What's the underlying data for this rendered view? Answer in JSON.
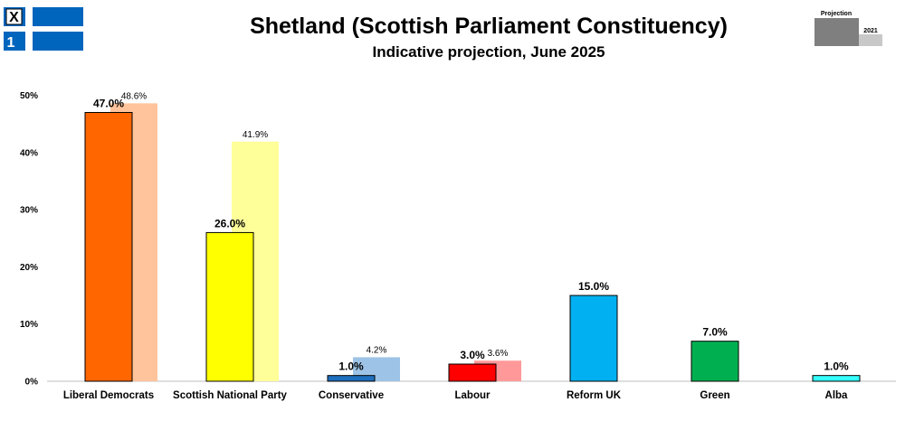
{
  "header": {
    "ballot_icon_mark": "X",
    "ballot_icon_number": "1"
  },
  "legend": {
    "projection_label": "Projection",
    "previous_label": "2021"
  },
  "colors": {
    "previous_default": "#cccccc",
    "legend_projection": "#7f7f7f",
    "legend_previous": "#c8c8c8",
    "flag_blue": "#0065bd"
  },
  "chart_data": {
    "type": "bar",
    "title": "Shetland (Scottish Parliament Constituency)",
    "subtitle": "Indicative projection, June 2025",
    "xlabel": "",
    "ylabel": "",
    "ylim": [
      0,
      50
    ],
    "yticks": [
      0,
      10,
      20,
      30,
      40,
      50
    ],
    "ytick_labels": [
      "0%",
      "10%",
      "20%",
      "30%",
      "40%",
      "50%"
    ],
    "categories": [
      "Liberal Democrats",
      "Scottish National Party",
      "Conservative",
      "Labour",
      "Reform UK",
      "Green",
      "Alba"
    ],
    "series": [
      {
        "name": "Projection",
        "values": [
          47.0,
          26.0,
          1.0,
          3.0,
          15.0,
          7.0,
          1.0
        ],
        "labels": [
          "47.0%",
          "26.0%",
          "1.0%",
          "3.0%",
          "15.0%",
          "7.0%",
          "1.0%"
        ],
        "colors": [
          "#ff6600",
          "#ffff00",
          "#1f6fbf",
          "#ff0000",
          "#00b0f0",
          "#00b050",
          "#33ffff"
        ]
      },
      {
        "name": "2021",
        "values": [
          48.6,
          41.9,
          4.2,
          3.6,
          null,
          null,
          null
        ],
        "labels": [
          "48.6%",
          "41.9%",
          "4.2%",
          "3.6%",
          null,
          null,
          null
        ],
        "colors": [
          "#ffc49c",
          "#ffff99",
          "#9dc3e6",
          "#ff9999",
          null,
          null,
          null
        ]
      }
    ]
  }
}
